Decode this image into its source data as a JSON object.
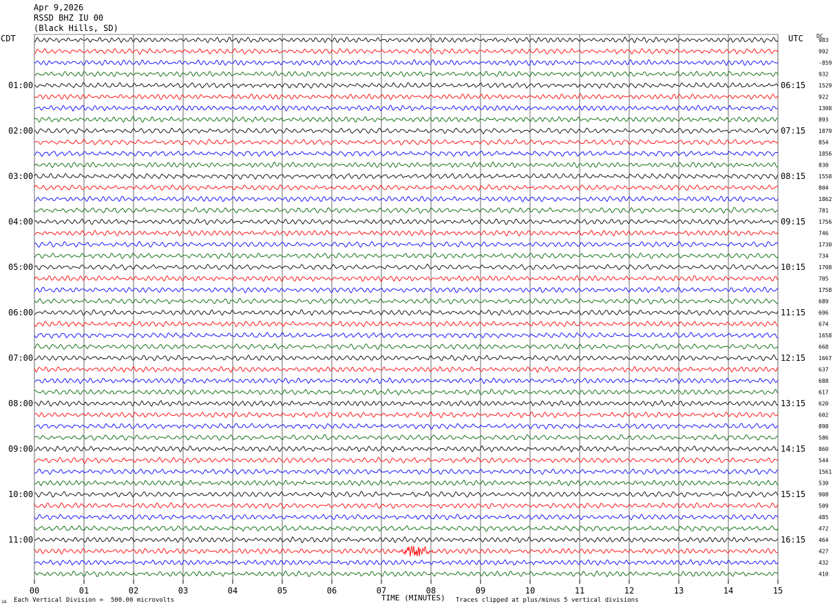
{
  "header": {
    "date": "Apr 9,2026",
    "station": "RSSD BHZ IU 00",
    "location": "(Black Hills, SD)"
  },
  "left_tz": "CDT",
  "right_tz": "UTC",
  "dc_label": "DC",
  "footer": {
    "scale": "Each Vertical Division =  500.00 microvolts",
    "clip": "Traces clipped at plus/minus 5 vertical divisions",
    "corner": "1A"
  },
  "colors": {
    "trace_cycle": [
      "#000000",
      "#ff0000",
      "#0000ff",
      "#006400"
    ],
    "grid": "#000000"
  },
  "chart_data": {
    "type": "line",
    "title": "RSSD BHZ IU 00",
    "xlabel": "TIME (MINUTES)",
    "x_ticks": [
      "00",
      "01",
      "02",
      "03",
      "04",
      "05",
      "06",
      "07",
      "08",
      "09",
      "10",
      "11",
      "12",
      "13",
      "14",
      "15"
    ],
    "xlim": [
      0,
      15
    ],
    "rows": 48,
    "minutes_per_row": 15,
    "left_hour_labels": [
      "01:00",
      "02:00",
      "03:00",
      "04:00",
      "05:00",
      "06:00",
      "07:00",
      "08:00",
      "09:00",
      "10:00",
      "11:00"
    ],
    "right_hour_labels": [
      "06:15",
      "07:15",
      "08:15",
      "09:15",
      "10:15",
      "11:15",
      "12:15",
      "13:15",
      "14:15",
      "15:15",
      "16:15"
    ],
    "dc_offsets": [
      "983",
      "992",
      "-859",
      "932",
      "1529",
      "922",
      "1308",
      "893",
      "1879",
      "854",
      "1856",
      "830",
      "1558",
      "804",
      "1862",
      "781",
      "1756",
      "746",
      "1730",
      "734",
      "1708",
      "705",
      "1758",
      "689",
      "696",
      "674",
      "1658",
      "668",
      "1667",
      "637",
      "688",
      "617",
      "620",
      "602",
      "898",
      "586",
      "860",
      "544",
      "1561",
      "530",
      "908",
      "509",
      "485",
      "472",
      "464",
      "427",
      "432",
      "410"
    ],
    "event": {
      "row": 45,
      "start_minute": 7.1,
      "end_minute": 8.2,
      "peak_minute": 7.7
    },
    "grid": true
  }
}
